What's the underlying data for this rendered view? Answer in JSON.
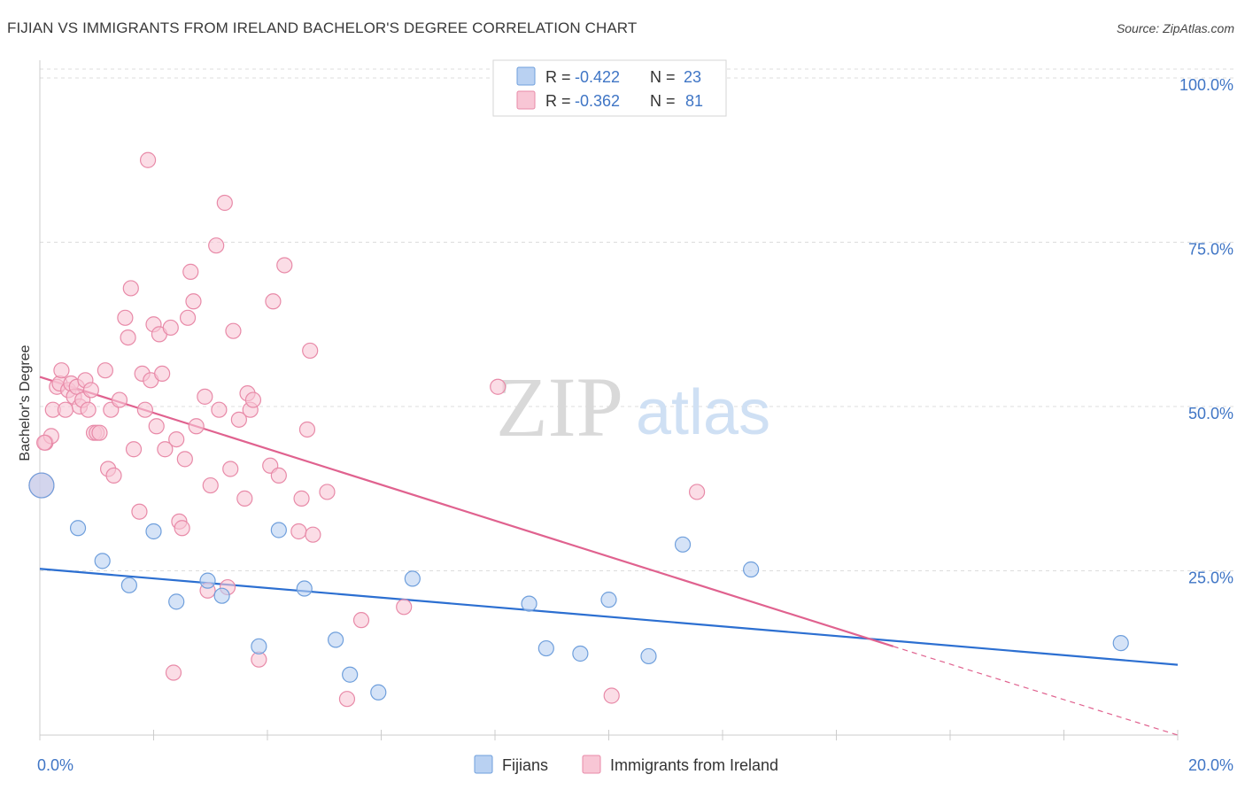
{
  "title": "FIJIAN VS IMMIGRANTS FROM IRELAND BACHELOR'S DEGREE CORRELATION CHART",
  "source": "Source: ZipAtlas.com",
  "watermark": {
    "zip": "ZIP",
    "atlas": "atlas"
  },
  "colors": {
    "blue_fill": "#b9d1f2",
    "blue_stroke": "#6f9fdc",
    "blue_line": "#2c6fd1",
    "pink_fill": "#f8c6d5",
    "pink_stroke": "#e88aa8",
    "pink_line": "#e0628f",
    "grid": "#dcdcdc",
    "tick_text": "#3f75c5"
  },
  "legend": {
    "rows": [
      {
        "r_label": "R =",
        "r_value": "-0.422",
        "n_label": "N =",
        "n_value": "23"
      },
      {
        "r_label": "R =",
        "r_value": "-0.362",
        "n_label": "N =",
        "n_value": "81"
      }
    ]
  },
  "chart_data": {
    "type": "scatter",
    "title": "FIJIAN VS IMMIGRANTS FROM IRELAND BACHELOR'S DEGREE CORRELATION CHART",
    "xlabel": "",
    "ylabel": "Bachelor's Degree",
    "xlim": [
      0,
      20
    ],
    "ylim": [
      0,
      100
    ],
    "x_tick_labels": [
      "0.0%",
      "20.0%"
    ],
    "y_ticks": [
      25,
      50,
      75,
      100
    ],
    "y_tick_labels": [
      "25.0%",
      "50.0%",
      "75.0%",
      "100.0%"
    ],
    "grid": true,
    "legend_position": "bottom",
    "series": [
      {
        "name": "Fijians",
        "color": "blue",
        "points": [
          [
            0.03,
            38.0
          ],
          [
            0.67,
            31.5
          ],
          [
            1.1,
            26.5
          ],
          [
            1.57,
            22.8
          ],
          [
            2.0,
            31.0
          ],
          [
            2.4,
            20.3
          ],
          [
            2.95,
            23.5
          ],
          [
            3.2,
            21.2
          ],
          [
            3.85,
            13.5
          ],
          [
            4.2,
            31.2
          ],
          [
            4.65,
            22.3
          ],
          [
            5.2,
            14.5
          ],
          [
            5.45,
            9.2
          ],
          [
            5.95,
            6.5
          ],
          [
            6.55,
            23.8
          ],
          [
            8.6,
            20.0
          ],
          [
            8.9,
            13.2
          ],
          [
            9.5,
            12.4
          ],
          [
            10.0,
            20.6
          ],
          [
            10.7,
            12.0
          ],
          [
            11.3,
            29.0
          ],
          [
            12.5,
            25.2
          ],
          [
            19.0,
            14.0
          ]
        ],
        "trend": {
          "x": [
            0,
            20
          ],
          "y": [
            25.3,
            10.7
          ]
        }
      },
      {
        "name": "Immigrants from Ireland",
        "color": "pink",
        "points": [
          [
            0.03,
            38.0
          ],
          [
            0.1,
            44.5
          ],
          [
            0.2,
            45.5
          ],
          [
            0.23,
            49.5
          ],
          [
            0.3,
            53.0
          ],
          [
            0.35,
            53.5
          ],
          [
            0.38,
            55.5
          ],
          [
            0.45,
            49.5
          ],
          [
            0.5,
            52.5
          ],
          [
            0.55,
            53.5
          ],
          [
            0.6,
            51.5
          ],
          [
            0.65,
            53.0
          ],
          [
            0.7,
            50.0
          ],
          [
            0.75,
            51.0
          ],
          [
            0.8,
            54.0
          ],
          [
            0.85,
            49.5
          ],
          [
            0.9,
            52.5
          ],
          [
            0.95,
            46.0
          ],
          [
            1.0,
            46.0
          ],
          [
            1.05,
            46.0
          ],
          [
            1.15,
            55.5
          ],
          [
            1.2,
            40.5
          ],
          [
            1.25,
            49.5
          ],
          [
            1.3,
            39.5
          ],
          [
            1.4,
            51.0
          ],
          [
            1.5,
            63.5
          ],
          [
            1.55,
            60.5
          ],
          [
            1.6,
            68.0
          ],
          [
            1.65,
            43.5
          ],
          [
            1.75,
            34.0
          ],
          [
            1.8,
            55.0
          ],
          [
            1.85,
            49.5
          ],
          [
            1.9,
            87.5
          ],
          [
            1.95,
            54.0
          ],
          [
            2.0,
            62.5
          ],
          [
            2.05,
            47.0
          ],
          [
            2.1,
            61.0
          ],
          [
            2.15,
            55.0
          ],
          [
            2.2,
            43.5
          ],
          [
            2.3,
            62.0
          ],
          [
            2.35,
            9.5
          ],
          [
            2.4,
            45.0
          ],
          [
            2.45,
            32.5
          ],
          [
            2.5,
            31.5
          ],
          [
            2.55,
            42.0
          ],
          [
            2.6,
            63.5
          ],
          [
            2.65,
            70.5
          ],
          [
            2.7,
            66.0
          ],
          [
            2.75,
            47.0
          ],
          [
            2.9,
            51.5
          ],
          [
            2.95,
            22.0
          ],
          [
            3.0,
            38.0
          ],
          [
            3.1,
            74.5
          ],
          [
            3.15,
            49.5
          ],
          [
            3.25,
            81.0
          ],
          [
            3.3,
            22.5
          ],
          [
            3.35,
            40.5
          ],
          [
            3.4,
            61.5
          ],
          [
            3.5,
            48.0
          ],
          [
            3.6,
            36.0
          ],
          [
            3.65,
            52.0
          ],
          [
            3.7,
            49.5
          ],
          [
            3.75,
            51.0
          ],
          [
            3.85,
            11.5
          ],
          [
            4.05,
            41.0
          ],
          [
            4.1,
            66.0
          ],
          [
            4.2,
            39.5
          ],
          [
            4.3,
            71.5
          ],
          [
            4.55,
            31.0
          ],
          [
            4.6,
            36.0
          ],
          [
            4.7,
            46.5
          ],
          [
            4.75,
            58.5
          ],
          [
            4.8,
            30.5
          ],
          [
            5.05,
            37.0
          ],
          [
            5.4,
            5.5
          ],
          [
            5.65,
            17.5
          ],
          [
            6.4,
            19.5
          ],
          [
            8.05,
            53.0
          ],
          [
            10.05,
            6.0
          ],
          [
            11.55,
            37.0
          ],
          [
            0.08,
            44.5
          ]
        ],
        "trend": {
          "x": [
            0,
            15
          ],
          "y": [
            54.5,
            13.5
          ]
        },
        "trend_dashed": {
          "x": [
            15,
            20
          ],
          "y": [
            13.5,
            0
          ]
        }
      }
    ]
  }
}
